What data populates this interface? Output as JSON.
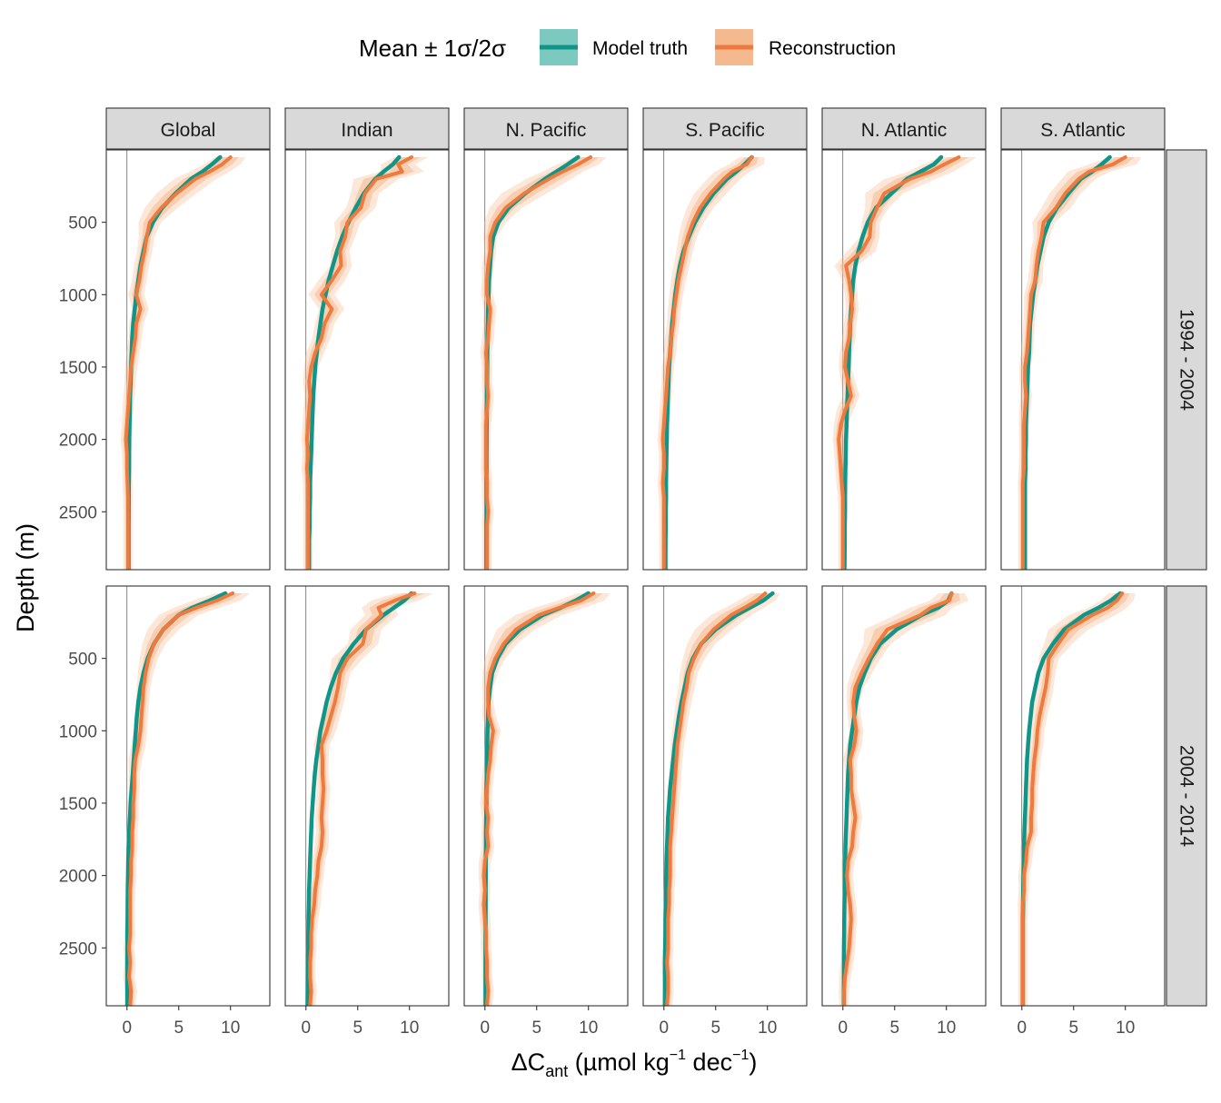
{
  "legend": {
    "title": "Mean ± 1σ/2σ",
    "items": [
      {
        "label": "Model truth",
        "color": "#0f9688",
        "band": "#7cc9bf"
      },
      {
        "label": "Reconstruction",
        "color": "#ee7a3e",
        "band": "#f5b990"
      }
    ]
  },
  "axes": {
    "y_title": "Depth (m)",
    "x_title_main": "ΔC",
    "x_title_sub": "ant",
    "x_title_unit_a": " (µmol kg",
    "x_title_sup1": "−1",
    "x_title_unit_b": " dec",
    "x_title_sup2": "−1",
    "x_title_close": ")"
  },
  "chart_data": {
    "type": "line",
    "orientation": "depth-profile",
    "columns": [
      "Global",
      "Indian",
      "N. Pacific",
      "S. Pacific",
      "N. Atlantic",
      "S. Atlantic"
    ],
    "rows": [
      "1994 - 2004",
      "2004 - 2014"
    ],
    "xlim": [
      -2,
      13.8
    ],
    "ylim": [
      2900,
      0
    ],
    "x_ticks": [
      0,
      5,
      10
    ],
    "y_ticks": [
      500,
      1000,
      1500,
      2000,
      2500
    ],
    "depth": [
      50,
      100,
      150,
      200,
      300,
      400,
      500,
      600,
      700,
      800,
      900,
      1000,
      1100,
      1200,
      1300,
      1400,
      1500,
      1600,
      1700,
      1800,
      1900,
      2000,
      2100,
      2200,
      2300,
      2400,
      2500,
      2600,
      2700,
      2800,
      2900
    ],
    "series_names": [
      "Model truth",
      "Reconstruction"
    ],
    "panels": [
      {
        "row": "1994 - 2004",
        "column": "Global",
        "truth": [
          9.0,
          8.2,
          7.3,
          6.2,
          4.7,
          3.4,
          2.5,
          1.9,
          1.6,
          1.3,
          1.1,
          0.9,
          0.75,
          0.6,
          0.5,
          0.45,
          0.4,
          0.35,
          0.3,
          0.28,
          0.25,
          0.22,
          0.2,
          0.2,
          0.18,
          0.17,
          0.16,
          0.15,
          0.15,
          0.15,
          0.15
        ],
        "recon": [
          10.0,
          9.2,
          8.0,
          6.6,
          4.8,
          3.3,
          2.2,
          1.9,
          1.7,
          1.4,
          1.2,
          0.9,
          1.3,
          0.9,
          0.8,
          0.6,
          0.4,
          0.3,
          0.2,
          0.1,
          0.0,
          -0.1,
          0.0,
          0.0,
          0.05,
          0.1,
          0.1,
          0.1,
          0.1,
          0.1,
          0.1
        ]
      },
      {
        "row": "1994 - 2004",
        "column": "Indian",
        "truth": [
          9.0,
          8.4,
          7.5,
          6.7,
          5.6,
          4.8,
          4.1,
          3.5,
          3.0,
          2.6,
          2.2,
          1.9,
          1.6,
          1.4,
          1.2,
          1.05,
          0.9,
          0.8,
          0.7,
          0.65,
          0.6,
          0.55,
          0.5,
          0.45,
          0.4,
          0.4,
          0.35,
          0.35,
          0.3,
          0.3,
          0.3
        ],
        "recon": [
          10.2,
          8.9,
          9.3,
          6.8,
          5.7,
          5.3,
          4.0,
          3.8,
          3.3,
          3.4,
          2.5,
          1.5,
          2.5,
          1.8,
          1.5,
          0.9,
          0.5,
          0.3,
          0.4,
          0.3,
          0.2,
          0.1,
          0.2,
          0.1,
          0.2,
          0.2,
          0.2,
          0.2,
          0.2,
          0.2,
          0.2
        ]
      },
      {
        "row": "1994 - 2004",
        "column": "N. Pacific",
        "truth": [
          9.0,
          8.0,
          6.9,
          5.8,
          3.9,
          2.3,
          1.3,
          0.8,
          0.6,
          0.5,
          0.4,
          0.35,
          0.3,
          0.28,
          0.25,
          0.23,
          0.22,
          0.2,
          0.2,
          0.18,
          0.17,
          0.16,
          0.15,
          0.15,
          0.15,
          0.15,
          0.15,
          0.14,
          0.14,
          0.14,
          0.14
        ],
        "recon": [
          10.2,
          9.0,
          7.5,
          6.2,
          3.8,
          2.0,
          1.0,
          0.5,
          0.5,
          0.3,
          0.2,
          0.2,
          0.5,
          0.4,
          0.3,
          0.1,
          0.2,
          0.2,
          0.3,
          0.2,
          0.1,
          0.1,
          0.1,
          0.1,
          0.2,
          0.2,
          0.3,
          0.2,
          0.2,
          0.2,
          0.2
        ]
      },
      {
        "row": "1994 - 2004",
        "column": "S. Pacific",
        "truth": [
          8.5,
          7.8,
          7.0,
          6.1,
          4.8,
          3.8,
          3.0,
          2.4,
          1.9,
          1.55,
          1.3,
          1.1,
          0.95,
          0.8,
          0.7,
          0.6,
          0.5,
          0.45,
          0.4,
          0.35,
          0.3,
          0.28,
          0.25,
          0.22,
          0.2,
          0.2,
          0.18,
          0.18,
          0.16,
          0.15,
          0.15
        ],
        "recon": [
          8.5,
          8.0,
          6.6,
          5.8,
          4.5,
          3.5,
          2.8,
          2.3,
          2.0,
          1.7,
          1.4,
          1.2,
          1.0,
          0.9,
          0.7,
          0.6,
          0.4,
          0.3,
          0.2,
          0.1,
          0.0,
          -0.1,
          0.0,
          0.0,
          -0.1,
          0.0,
          0.0,
          0.0,
          0.0,
          0.0,
          0.0
        ]
      },
      {
        "row": "1994 - 2004",
        "column": "N. Atlantic",
        "truth": [
          9.5,
          8.8,
          7.5,
          6.2,
          4.7,
          3.2,
          2.4,
          1.9,
          1.5,
          1.2,
          1.0,
          0.9,
          0.8,
          0.7,
          0.65,
          0.6,
          0.55,
          0.5,
          0.45,
          0.4,
          0.35,
          0.3,
          0.28,
          0.25,
          0.22,
          0.2,
          0.2,
          0.18,
          0.18,
          0.17,
          0.15
        ],
        "recon": [
          11.2,
          9.8,
          8.5,
          6.5,
          4.0,
          3.3,
          2.7,
          2.6,
          1.8,
          0.3,
          0.6,
          0.8,
          0.9,
          0.7,
          0.6,
          0.3,
          0.2,
          0.5,
          0.8,
          0.2,
          -0.2,
          -0.4,
          -0.3,
          -0.2,
          -0.1,
          0.0,
          0.0,
          0.0,
          0.0,
          0.0,
          0.0
        ]
      },
      {
        "row": "1994 - 2004",
        "column": "S. Atlantic",
        "truth": [
          8.5,
          7.7,
          6.8,
          5.7,
          4.5,
          3.4,
          2.6,
          2.1,
          1.8,
          1.5,
          1.3,
          1.1,
          0.95,
          0.8,
          0.75,
          0.7,
          0.6,
          0.55,
          0.5,
          0.45,
          0.4,
          0.4,
          0.35,
          0.35,
          0.3,
          0.3,
          0.3,
          0.3,
          0.3,
          0.3,
          0.3
        ],
        "recon": [
          10.0,
          8.8,
          6.5,
          5.5,
          4.2,
          3.3,
          2.1,
          1.9,
          1.6,
          1.4,
          1.3,
          0.9,
          0.8,
          0.7,
          0.6,
          0.5,
          0.3,
          0.3,
          0.4,
          0.3,
          0.2,
          0.2,
          0.2,
          0.2,
          0.1,
          0.1,
          0.1,
          0.1,
          0.1,
          0.1,
          0.1
        ]
      },
      {
        "row": "2004 - 2014",
        "column": "Global",
        "truth": [
          9.5,
          8.0,
          6.3,
          5.0,
          3.5,
          2.6,
          2.0,
          1.6,
          1.3,
          1.1,
          0.95,
          0.85,
          0.75,
          0.65,
          0.55,
          0.45,
          0.35,
          0.28,
          0.2,
          0.15,
          0.12,
          0.1,
          0.08,
          0.06,
          0.05,
          0.04,
          0.04,
          0.03,
          0.03,
          0.03,
          0.03
        ],
        "recon": [
          10.2,
          8.7,
          6.7,
          5.0,
          3.5,
          2.6,
          2.1,
          1.8,
          1.6,
          1.5,
          1.4,
          1.3,
          1.1,
          0.8,
          0.7,
          0.7,
          0.6,
          0.6,
          0.5,
          0.5,
          0.4,
          0.4,
          0.3,
          0.3,
          0.3,
          0.3,
          0.2,
          0.3,
          0.2,
          0.4,
          0.3
        ]
      },
      {
        "row": "2004 - 2014",
        "column": "Indian",
        "truth": [
          10.2,
          9.5,
          8.5,
          7.5,
          5.8,
          4.6,
          3.6,
          2.9,
          2.4,
          2.0,
          1.7,
          1.4,
          1.2,
          1.0,
          0.85,
          0.75,
          0.65,
          0.55,
          0.5,
          0.45,
          0.4,
          0.35,
          0.3,
          0.28,
          0.25,
          0.22,
          0.2,
          0.18,
          0.17,
          0.16,
          0.15
        ],
        "recon": [
          10.5,
          8.6,
          7.0,
          7.3,
          5.8,
          5.5,
          4.0,
          3.3,
          3.1,
          2.8,
          2.4,
          2.0,
          1.5,
          1.6,
          1.6,
          1.7,
          1.6,
          1.5,
          1.6,
          1.5,
          1.2,
          1.1,
          0.9,
          0.8,
          0.6,
          0.5,
          0.5,
          0.4,
          0.4,
          0.5,
          0.4
        ]
      },
      {
        "row": "2004 - 2014",
        "column": "N. Pacific",
        "truth": [
          10.0,
          8.8,
          7.3,
          5.6,
          3.4,
          2.0,
          1.2,
          0.7,
          0.5,
          0.35,
          0.3,
          0.25,
          0.22,
          0.2,
          0.18,
          0.15,
          0.14,
          0.12,
          0.1,
          0.1,
          0.08,
          0.08,
          0.07,
          0.07,
          0.06,
          0.06,
          0.05,
          0.05,
          0.05,
          0.05,
          0.05
        ],
        "recon": [
          10.5,
          9.3,
          7.2,
          5.2,
          3.0,
          1.8,
          1.0,
          0.5,
          0.3,
          0.3,
          0.4,
          0.8,
          0.6,
          0.5,
          0.3,
          0.2,
          0.1,
          0.3,
          0.2,
          0.3,
          0.0,
          -0.1,
          0.0,
          -0.1,
          0.0,
          0.1,
          0.1,
          0.2,
          0.2,
          0.3,
          0.2
        ]
      },
      {
        "row": "2004 - 2014",
        "column": "S. Pacific",
        "truth": [
          10.5,
          9.6,
          8.3,
          7.0,
          5.0,
          3.6,
          2.8,
          2.3,
          2.0,
          1.7,
          1.45,
          1.25,
          1.05,
          0.9,
          0.75,
          0.6,
          0.5,
          0.4,
          0.35,
          0.3,
          0.25,
          0.22,
          0.2,
          0.18,
          0.15,
          0.14,
          0.12,
          0.1,
          0.1,
          0.1,
          0.1
        ],
        "recon": [
          9.8,
          9.0,
          7.8,
          6.5,
          4.8,
          3.6,
          2.9,
          2.4,
          2.2,
          1.9,
          1.7,
          1.5,
          1.3,
          1.2,
          1.1,
          1.0,
          0.9,
          0.8,
          0.7,
          0.6,
          0.6,
          0.6,
          0.5,
          0.5,
          0.4,
          0.4,
          0.4,
          0.3,
          0.4,
          0.4,
          0.3
        ]
      },
      {
        "row": "2004 - 2014",
        "column": "N. Atlantic",
        "truth": [
          10.5,
          10.2,
          9.2,
          7.6,
          5.2,
          3.6,
          2.7,
          2.1,
          1.6,
          1.3,
          1.1,
          0.9,
          0.7,
          0.6,
          0.5,
          0.45,
          0.4,
          0.35,
          0.3,
          0.25,
          0.22,
          0.2,
          0.18,
          0.15,
          0.13,
          0.12,
          0.1,
          0.1,
          0.1,
          0.1,
          0.1
        ],
        "recon": [
          10.5,
          10.3,
          8.5,
          7.5,
          4.3,
          3.3,
          2.5,
          1.8,
          1.2,
          1.0,
          1.1,
          1.3,
          1.1,
          0.7,
          0.8,
          0.8,
          1.0,
          1.2,
          1.0,
          0.9,
          0.5,
          0.4,
          0.5,
          0.7,
          0.8,
          0.7,
          0.6,
          0.4,
          0.2,
          0.1,
          0.1
        ]
      },
      {
        "row": "2004 - 2014",
        "column": "S. Atlantic",
        "truth": [
          9.5,
          8.6,
          7.4,
          6.0,
          4.1,
          3.0,
          2.1,
          1.6,
          1.3,
          1.0,
          0.85,
          0.7,
          0.6,
          0.5,
          0.45,
          0.4,
          0.35,
          0.3,
          0.25,
          0.2,
          0.18,
          0.15,
          0.13,
          0.12,
          0.1,
          0.1,
          0.1,
          0.1,
          0.1,
          0.1,
          0.1
        ],
        "recon": [
          9.7,
          9.2,
          8.3,
          6.8,
          4.5,
          3.5,
          2.6,
          2.5,
          2.3,
          2.0,
          1.7,
          1.5,
          1.4,
          1.2,
          1.1,
          1.0,
          1.0,
          0.9,
          0.9,
          0.5,
          0.4,
          0.2,
          0.2,
          0.1,
          0.1,
          0.1,
          0.1,
          0.1,
          0.1,
          0.1,
          0.1
        ]
      }
    ]
  }
}
